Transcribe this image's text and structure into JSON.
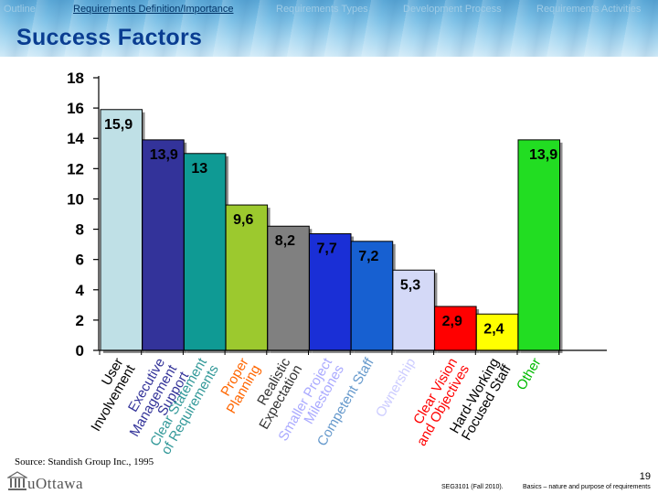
{
  "nav": {
    "items": [
      {
        "label": "Outline",
        "active": false
      },
      {
        "label": "Requirements Definition/Importance",
        "active": true
      },
      {
        "label": "Requirements Types",
        "active": false
      },
      {
        "label": "Development Process",
        "active": false
      },
      {
        "label": "Requirements Activities",
        "active": false
      }
    ]
  },
  "page_title": "Success Factors",
  "source": "Source: Standish Group Inc., 1995",
  "footer": {
    "logo_text": "uOttawa",
    "page_number": "19",
    "course": "SEG3101 (Fall 2010).",
    "description": "Basics – nature and purpose of requirements"
  },
  "chart_data": {
    "type": "bar",
    "title": "",
    "xlabel": "",
    "ylabel": "",
    "ylim": [
      0,
      18
    ],
    "yticks": [
      0,
      2,
      4,
      6,
      8,
      10,
      12,
      14,
      16,
      18
    ],
    "grid": false,
    "categories": [
      [
        "User",
        "Involvement"
      ],
      [
        "Executive",
        "Management",
        "Support"
      ],
      [
        "Clear Statement",
        "of Requirements"
      ],
      [
        "Proper",
        "Planning"
      ],
      [
        "Realistic",
        "Expectation"
      ],
      [
        "Smaller Project",
        "Milestones"
      ],
      [
        "Competent Staff"
      ],
      [
        "Ownership"
      ],
      [
        "Clear Vision",
        "and Objectives"
      ],
      [
        "Hard-Working",
        "Focused Staff"
      ],
      [
        "Other"
      ]
    ],
    "values": [
      15.9,
      13.9,
      13,
      9.6,
      8.2,
      7.7,
      7.2,
      5.3,
      2.9,
      2.4,
      13.9
    ],
    "value_labels": [
      "15,9",
      "13,9",
      "13",
      "9,6",
      "8,2",
      "7,7",
      "7,2",
      "5,3",
      "2,9",
      "2,4",
      "13,9"
    ],
    "bar_colors": [
      "#bfe0e6",
      "#33339a",
      "#0f9a94",
      "#9cc92e",
      "#808080",
      "#1a2fd6",
      "#1760d1",
      "#d4d9f7",
      "#ff0000",
      "#ffff00",
      "#22dd22"
    ],
    "label_colors": [
      "#000000",
      "#333399",
      "#339999",
      "#ff6600",
      "#333333",
      "#aaaaff",
      "#6699cc",
      "#ccccff",
      "#ff0000",
      "#000000",
      "#00bb00"
    ]
  }
}
